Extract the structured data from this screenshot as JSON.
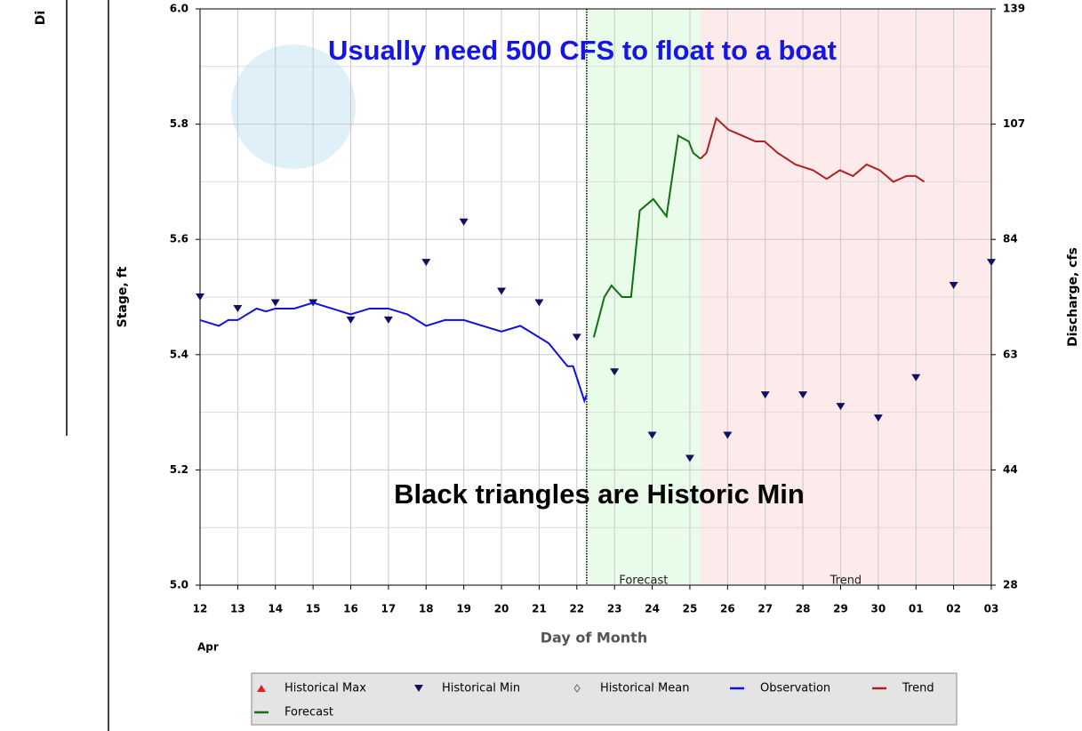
{
  "chart_data": {
    "type": "line",
    "left_fragment": "Di",
    "annotations": [
      "Usually need 500 CFS to float to a boat",
      "Black triangles are Historic Min"
    ],
    "ylabel": "Stage, ft",
    "y2label": "Discharge, cfs",
    "xlabel": "Day of Month",
    "month_label": "Apr",
    "xlim": [
      0,
      21
    ],
    "xticks": [
      {
        "value": 0,
        "label": "12"
      },
      {
        "value": 1,
        "label": "13"
      },
      {
        "value": 2,
        "label": "14"
      },
      {
        "value": 3,
        "label": "15"
      },
      {
        "value": 4,
        "label": "16"
      },
      {
        "value": 5,
        "label": "17"
      },
      {
        "value": 6,
        "label": "18"
      },
      {
        "value": 7,
        "label": "19"
      },
      {
        "value": 8,
        "label": "20"
      },
      {
        "value": 9,
        "label": "21"
      },
      {
        "value": 10,
        "label": "22"
      },
      {
        "value": 11,
        "label": "23"
      },
      {
        "value": 12,
        "label": "24"
      },
      {
        "value": 13,
        "label": "25"
      },
      {
        "value": 14,
        "label": "26"
      },
      {
        "value": 15,
        "label": "27"
      },
      {
        "value": 16,
        "label": "28"
      },
      {
        "value": 17,
        "label": "29"
      },
      {
        "value": 18,
        "label": "30"
      },
      {
        "value": 19,
        "label": "01"
      },
      {
        "value": 20,
        "label": "02"
      },
      {
        "value": 21,
        "label": "03"
      }
    ],
    "ylim": [
      5.0,
      6.0
    ],
    "yticks": [
      {
        "value": 5.0,
        "label": "5.0"
      },
      5.2,
      5.4,
      5.6,
      5.8,
      {
        "value": 6.0,
        "label": "6.0"
      }
    ],
    "y2_tick_labels": [
      28,
      44,
      63,
      84,
      107,
      139
    ],
    "grid": true,
    "regions": [
      {
        "label": "Forecast",
        "color": "#e9fbe9",
        "xlim": [
          10.26,
          13.28
        ]
      },
      {
        "label": "Trend",
        "color": "#fdeaea",
        "xlim": [
          13.28,
          21
        ]
      }
    ],
    "series": [
      {
        "name": "Historical Max",
        "color": "#e02020",
        "symbol": "up",
        "x": [],
        "values": []
      },
      {
        "name": "Historical Min",
        "color": "#101060",
        "symbol": "down",
        "x": [
          0,
          1,
          2,
          3,
          4,
          5,
          6,
          7,
          8,
          9,
          10,
          11,
          12,
          13,
          14,
          15,
          16,
          17,
          18,
          19,
          20,
          21
        ],
        "values": [
          5.5,
          5.48,
          5.49,
          5.49,
          5.46,
          5.46,
          5.56,
          5.63,
          5.51,
          5.49,
          5.43,
          5.37,
          5.26,
          5.22,
          5.26,
          5.33,
          5.33,
          5.31,
          5.29,
          5.36,
          5.52,
          5.56
        ]
      },
      {
        "name": "Historical Mean",
        "color": "#666666",
        "symbol": "diamond",
        "x": [],
        "values": []
      },
      {
        "name": "Observation",
        "color": "#1010e0",
        "symbol": "line",
        "x": [
          0,
          0.25,
          0.5,
          0.75,
          1,
          1.25,
          1.5,
          1.75,
          2,
          2.5,
          3,
          3.5,
          4,
          4.5,
          5,
          5.5,
          6,
          6.5,
          7,
          7.5,
          8,
          8.5,
          9,
          9.25,
          9.5,
          9.75,
          9.9,
          10.1,
          10.2,
          10.26
        ],
        "values": [
          5.46,
          5.455,
          5.45,
          5.46,
          5.46,
          5.47,
          5.48,
          5.475,
          5.48,
          5.48,
          5.49,
          5.48,
          5.47,
          5.48,
          5.48,
          5.47,
          5.45,
          5.46,
          5.46,
          5.45,
          5.44,
          5.45,
          5.43,
          5.42,
          5.4,
          5.38,
          5.38,
          5.34,
          5.32,
          5.33
        ]
      },
      {
        "name": "Trend",
        "color": "#b02020",
        "symbol": "line",
        "x": [
          13.28,
          13.44,
          13.7,
          14.03,
          14.39,
          14.74,
          14.98,
          15.33,
          15.8,
          16.27,
          16.63,
          16.98,
          17.33,
          17.69,
          18.04,
          18.4,
          18.75,
          18.99,
          19.22
        ],
        "values": [
          5.74,
          5.75,
          5.81,
          5.79,
          5.78,
          5.77,
          5.77,
          5.75,
          5.73,
          5.72,
          5.705,
          5.72,
          5.71,
          5.73,
          5.72,
          5.7,
          5.71,
          5.71,
          5.7
        ]
      },
      {
        "name": "Forecast",
        "color": "#107010",
        "symbol": "line",
        "x": [
          10.45,
          10.73,
          10.92,
          11.2,
          11.44,
          11.67,
          12.03,
          12.38,
          12.69,
          12.97,
          13.09,
          13.28
        ],
        "values": [
          5.43,
          5.5,
          5.52,
          5.5,
          5.5,
          5.65,
          5.67,
          5.64,
          5.78,
          5.77,
          5.75,
          5.74
        ]
      }
    ]
  }
}
